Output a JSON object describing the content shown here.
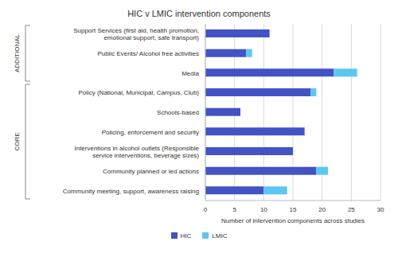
{
  "chart_data": {
    "type": "bar",
    "orientation": "horizontal",
    "stacked": true,
    "title": "HIC v LMIC intervention components",
    "categories": [
      "Support Services (first aid, health promotion, emotional support, safe transport)",
      "Public Events/ Alcohol free activities",
      "Media",
      "Policy (National, Municipal, Campus, Club)",
      "Schools-based",
      "Policing, enforcement and security",
      "Interventions in alcohol outlets (Responsible service interventions, beverage sizes)",
      "Community planned or led actions",
      "Community meeting, support, awareness raising"
    ],
    "series": [
      {
        "name": "HIC",
        "color": "#4353c6",
        "values": [
          11,
          7,
          22,
          18,
          6,
          17,
          15,
          19,
          10
        ]
      },
      {
        "name": "LMIC",
        "color": "#5ac8f0",
        "values": [
          0,
          1,
          4,
          1,
          0,
          0,
          0,
          2,
          4
        ]
      }
    ],
    "xlabel": "Number of intervention components across studies",
    "xlim": [
      0,
      30
    ],
    "xticks": [
      0,
      5,
      10,
      15,
      20,
      25,
      30
    ],
    "grid": true,
    "legend": "bottom",
    "groups": [
      {
        "name": "ADDITIONAL",
        "size": 3
      },
      {
        "name": "CORE",
        "size": 6
      }
    ]
  }
}
